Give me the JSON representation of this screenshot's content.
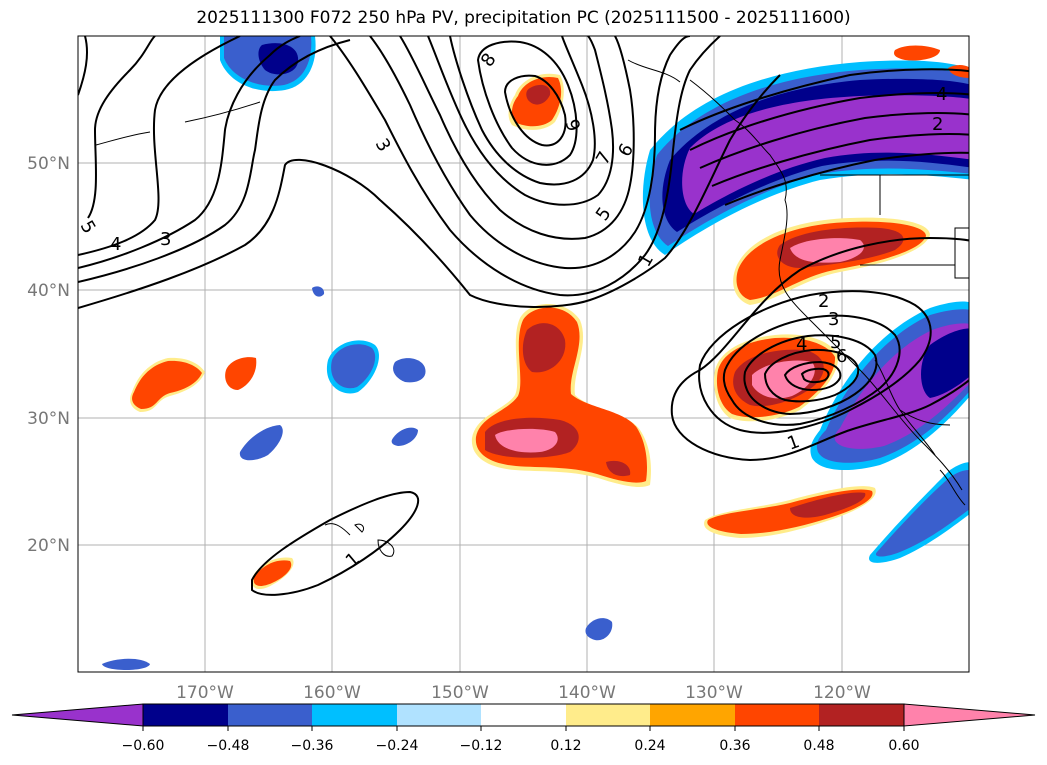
{
  "title": "2025111300 F072 250 hPa PV, precipitation PC (2025111500 - 2025111600)",
  "map": {
    "lon_range": [
      -180,
      -110
    ],
    "lat_range": [
      10,
      60
    ],
    "lat_ticks": [
      {
        "value": 20,
        "label": "20°N"
      },
      {
        "value": 30,
        "label": "30°N"
      },
      {
        "value": 40,
        "label": "40°N"
      },
      {
        "value": 50,
        "label": "50°N"
      }
    ],
    "lon_ticks": [
      {
        "value": -170,
        "label": "170°W"
      },
      {
        "value": -160,
        "label": "160°W"
      },
      {
        "value": -150,
        "label": "150°W"
      },
      {
        "value": -140,
        "label": "140°W"
      },
      {
        "value": -130,
        "label": "130°W"
      },
      {
        "value": -120,
        "label": "120°W"
      }
    ],
    "contour_labels": [
      "1",
      "2",
      "3",
      "4",
      "5",
      "6",
      "7",
      "8",
      "9"
    ]
  },
  "colorbar": {
    "colors": [
      "#9932cc",
      "#00008b",
      "#3a5fcd",
      "#00bfff",
      "#b0e2ff",
      "#ffffff",
      "#ffec8b",
      "#ffa500",
      "#ff4500",
      "#b22222",
      "#ff82ab"
    ],
    "ticks": [
      "−0.60",
      "−0.48",
      "−0.36",
      "−0.24",
      "−0.12",
      "0.12",
      "0.24",
      "0.36",
      "0.48",
      "0.60"
    ]
  }
}
